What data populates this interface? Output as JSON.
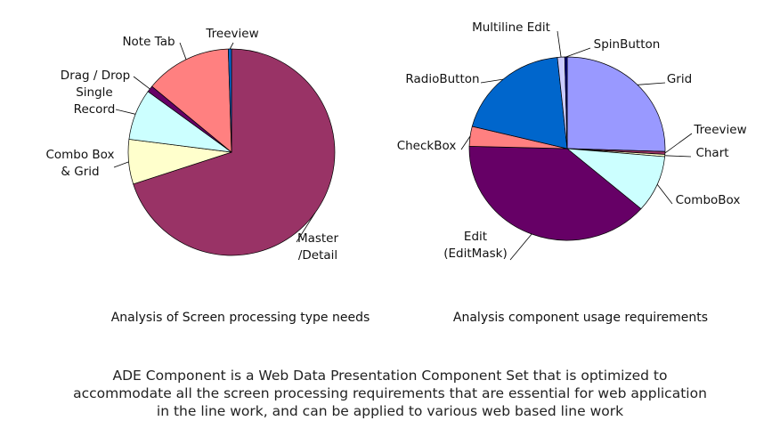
{
  "chart_data": [
    {
      "type": "pie",
      "title": "Analysis of Screen processing type needs",
      "slices": [
        {
          "label": "Master\n/Detail",
          "value": 70.0,
          "color": "#993366"
        },
        {
          "label": "Combo Box\n& Grid",
          "value": 7.0,
          "color": "#FFFFCC"
        },
        {
          "label": "Single\nRecord",
          "value": 8.0,
          "color": "#CCFFFF"
        },
        {
          "label": "Drag / Drop",
          "value": 1.0,
          "color": "#660066"
        },
        {
          "label": "Note Tab",
          "value": 13.5,
          "color": "#FF8080"
        },
        {
          "label": "Treeview",
          "value": 0.5,
          "color": "#0066CC"
        }
      ]
    },
    {
      "type": "pie",
      "title": "Analysis component usage requirements",
      "slices": [
        {
          "label": "Grid",
          "value": 25.5,
          "color": "#9999FF"
        },
        {
          "label": "Treeview",
          "value": 0.5,
          "color": "#993366"
        },
        {
          "label": "Chart",
          "value": 0.4,
          "color": "#FFFFCC"
        },
        {
          "label": "ComboBox",
          "value": 10.0,
          "color": "#CCFFFF"
        },
        {
          "label": "Edit\n(EditMask)",
          "value": 39.0,
          "color": "#660066"
        },
        {
          "label": "CheckBox",
          "value": 3.5,
          "color": "#FF8080"
        },
        {
          "label": "RadioButton",
          "value": 19.5,
          "color": "#0066CC"
        },
        {
          "label": "Multiline  Edit",
          "value": 1.2,
          "color": "#CCCCFF"
        },
        {
          "label": "SpinButton",
          "value": 0.4,
          "color": "#000080"
        }
      ]
    }
  ],
  "footer": {
    "lines": [
      "ADE Component is a Web Data Presentation Component Set that is optimized to",
      "accommodate all the screen processing requirements that are essential for web application",
      "in the line work, and can be applied to various web based line work"
    ]
  }
}
